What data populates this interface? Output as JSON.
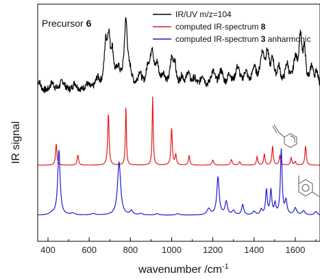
{
  "chart_data": {
    "type": "line",
    "xlabel": "wavenumber /cm",
    "xlabel_superscript": "-1",
    "ylabel": "IR signal",
    "xlim": [
      350,
      1720
    ],
    "x_ticks": [
      "400",
      "600",
      "800",
      "1000",
      "1200",
      "1400",
      "1600"
    ],
    "grid": false,
    "legend_position": "top-right",
    "annotation": {
      "text": "Precursor ",
      "bold": "6"
    },
    "series": [
      {
        "name": "IR/UV m/z=104",
        "color": "#000000",
        "baseline": 0.3,
        "peaks": [
          [
            356,
            0.28,
            10
          ],
          [
            420,
            0.22,
            12
          ],
          [
            470,
            0.26,
            14
          ],
          [
            530,
            0.2,
            12
          ],
          [
            590,
            0.16,
            14
          ],
          [
            640,
            0.28,
            12
          ],
          [
            680,
            1.05,
            9
          ],
          [
            695,
            1.1,
            8
          ],
          [
            712,
            0.8,
            9
          ],
          [
            740,
            0.45,
            12
          ],
          [
            778,
            1.72,
            10
          ],
          [
            800,
            0.3,
            10
          ],
          [
            845,
            0.4,
            12
          ],
          [
            885,
            0.5,
            10
          ],
          [
            905,
            0.95,
            10
          ],
          [
            930,
            0.55,
            10
          ],
          [
            960,
            0.35,
            12
          ],
          [
            1000,
            0.7,
            10
          ],
          [
            1015,
            0.55,
            8
          ],
          [
            1050,
            0.3,
            12
          ],
          [
            1080,
            0.4,
            10
          ],
          [
            1110,
            0.25,
            14
          ],
          [
            1150,
            0.35,
            12
          ],
          [
            1200,
            0.45,
            14
          ],
          [
            1240,
            0.45,
            12
          ],
          [
            1280,
            0.35,
            12
          ],
          [
            1320,
            0.55,
            14
          ],
          [
            1360,
            0.4,
            12
          ],
          [
            1400,
            0.5,
            12
          ],
          [
            1440,
            0.85,
            14
          ],
          [
            1465,
            0.75,
            10
          ],
          [
            1490,
            0.65,
            10
          ],
          [
            1520,
            0.5,
            10
          ],
          [
            1560,
            0.6,
            12
          ],
          [
            1600,
            0.7,
            12
          ],
          [
            1625,
            1.25,
            9
          ],
          [
            1645,
            0.9,
            8
          ],
          [
            1680,
            0.55,
            10
          ],
          [
            1705,
            0.45,
            10
          ]
        ]
      },
      {
        "name": "computed IR-spectrum ",
        "name_bold": "8",
        "color": "#e01818",
        "baseline": 0.0,
        "peaks": [
          [
            440,
            0.62,
            4
          ],
          [
            545,
            0.3,
            4
          ],
          [
            693,
            1.5,
            4
          ],
          [
            778,
            1.72,
            3
          ],
          [
            908,
            2.0,
            3
          ],
          [
            1000,
            1.08,
            4
          ],
          [
            1020,
            0.3,
            4
          ],
          [
            1085,
            0.28,
            4
          ],
          [
            1200,
            0.15,
            5
          ],
          [
            1290,
            0.16,
            5
          ],
          [
            1330,
            0.1,
            5
          ],
          [
            1415,
            0.25,
            4
          ],
          [
            1450,
            0.32,
            4
          ],
          [
            1490,
            0.55,
            4
          ],
          [
            1525,
            0.28,
            4
          ],
          [
            1580,
            0.22,
            4
          ],
          [
            1600,
            0.1,
            4
          ],
          [
            1650,
            0.56,
            4
          ]
        ]
      },
      {
        "name": "computed IR-spectrum ",
        "name_bold": "3",
        "name_suffix": " anharmonic",
        "color": "#1a1acc",
        "baseline": 0.0,
        "peaks": [
          [
            420,
            0.05,
            12
          ],
          [
            453,
            1.9,
            7
          ],
          [
            520,
            0.05,
            12
          ],
          [
            620,
            0.04,
            12
          ],
          [
            745,
            1.55,
            9
          ],
          [
            805,
            0.12,
            8
          ],
          [
            850,
            0.04,
            10
          ],
          [
            930,
            0.04,
            10
          ],
          [
            1030,
            0.04,
            10
          ],
          [
            1180,
            0.18,
            10
          ],
          [
            1225,
            1.1,
            7
          ],
          [
            1265,
            0.38,
            7
          ],
          [
            1300,
            0.12,
            8
          ],
          [
            1345,
            0.3,
            6
          ],
          [
            1400,
            0.1,
            8
          ],
          [
            1435,
            0.15,
            6
          ],
          [
            1460,
            0.72,
            5
          ],
          [
            1482,
            0.7,
            5
          ],
          [
            1502,
            0.3,
            5
          ],
          [
            1532,
            1.9,
            5
          ],
          [
            1555,
            0.4,
            6
          ],
          [
            1600,
            0.2,
            8
          ],
          [
            1640,
            0.12,
            8
          ],
          [
            1700,
            0.1,
            8
          ]
        ]
      }
    ]
  }
}
